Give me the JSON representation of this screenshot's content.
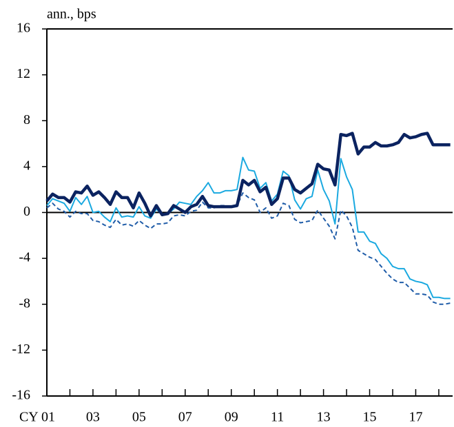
{
  "chart_data": {
    "type": "line",
    "y_axis_label": "ann., bps",
    "x": [
      2001,
      2001.25,
      2001.5,
      2001.75,
      2002,
      2002.25,
      2002.5,
      2002.75,
      2003,
      2003.25,
      2003.5,
      2003.75,
      2004,
      2004.25,
      2004.5,
      2004.75,
      2005,
      2005.25,
      2005.5,
      2005.75,
      2006,
      2006.25,
      2006.5,
      2006.75,
      2007,
      2007.25,
      2007.5,
      2007.75,
      2008,
      2008.25,
      2008.5,
      2008.75,
      2009,
      2009.25,
      2009.5,
      2009.75,
      2010,
      2010.25,
      2010.5,
      2010.75,
      2011,
      2011.25,
      2011.5,
      2011.75,
      2012,
      2012.25,
      2012.5,
      2012.75,
      2013,
      2013.25,
      2013.5,
      2013.75,
      2014,
      2014.25,
      2014.5,
      2014.75,
      2015,
      2015.25,
      2015.5,
      2015.75,
      2016,
      2016.25,
      2016.5,
      2016.75,
      2017,
      2017.25,
      2017.5,
      2017.75,
      2018,
      2018.25,
      2018.5
    ],
    "series": [
      {
        "color": "#1aa9e0",
        "width": 2,
        "dashed": false,
        "values": [
          0.6,
          1.2,
          1.0,
          0.8,
          0.1,
          1.3,
          0.7,
          1.4,
          0.0,
          0.1,
          -0.4,
          -0.8,
          0.4,
          -0.4,
          -0.3,
          -0.4,
          0.5,
          -0.3,
          -0.5,
          0.3,
          -0.2,
          -0.1,
          0.3,
          0.9,
          0.8,
          0.7,
          1.4,
          1.9,
          2.6,
          1.7,
          1.7,
          1.9,
          1.9,
          2.0,
          4.8,
          3.7,
          3.6,
          2.1,
          2.6,
          1.0,
          1.6,
          3.6,
          3.2,
          1.1,
          0.3,
          1.2,
          1.4,
          3.7,
          2.0,
          1.0,
          -1.0,
          4.7,
          3.1,
          2.0,
          -1.7,
          -1.7,
          -2.5,
          -2.7,
          -3.6,
          -4.0,
          -4.7,
          -4.9,
          -4.9,
          -5.8,
          -6.0,
          -6.1,
          -6.3,
          -7.4,
          -7.4,
          -7.5,
          -7.5
        ]
      },
      {
        "color": "#1f5ca8",
        "width": 2,
        "dashed": true,
        "values": [
          0.4,
          0.8,
          0.3,
          0.1,
          -0.4,
          0.1,
          -0.1,
          -0.1,
          -0.7,
          -0.8,
          -1.1,
          -1.3,
          -0.6,
          -1.1,
          -1.0,
          -1.2,
          -0.7,
          -1.1,
          -1.4,
          -1.0,
          -1.0,
          -0.9,
          -0.3,
          -0.2,
          -0.3,
          0.1,
          0.2,
          0.9,
          0.4,
          0.4,
          0.6,
          0.6,
          0.5,
          0.6,
          1.7,
          1.3,
          1.1,
          0.0,
          0.4,
          -0.5,
          -0.3,
          0.8,
          0.6,
          -0.6,
          -0.9,
          -0.8,
          -0.7,
          0.2,
          -0.5,
          -1.2,
          -2.3,
          0.2,
          -0.3,
          -1.3,
          -3.3,
          -3.6,
          -3.9,
          -4.1,
          -4.7,
          -5.3,
          -5.8,
          -6.1,
          -6.1,
          -6.6,
          -7.1,
          -7.1,
          -7.2,
          -7.8,
          -8.0,
          -8.0,
          -7.9
        ]
      },
      {
        "color": "#0b2360",
        "width": 4.5,
        "dashed": false,
        "values": [
          1.0,
          1.6,
          1.3,
          1.3,
          0.9,
          1.8,
          1.7,
          2.3,
          1.5,
          1.8,
          1.3,
          0.7,
          1.8,
          1.3,
          1.3,
          0.4,
          1.7,
          0.8,
          -0.3,
          0.6,
          -0.2,
          -0.1,
          0.6,
          0.3,
          0.0,
          0.5,
          0.7,
          1.4,
          0.6,
          0.5,
          0.5,
          0.5,
          0.5,
          0.6,
          2.8,
          2.4,
          2.8,
          1.8,
          2.2,
          0.7,
          1.2,
          3.0,
          3.0,
          2.0,
          1.7,
          2.1,
          2.5,
          4.2,
          3.8,
          3.7,
          2.4,
          6.8,
          6.7,
          6.9,
          5.1,
          5.7,
          5.7,
          6.1,
          5.8,
          5.8,
          5.9,
          6.1,
          6.8,
          6.5,
          6.6,
          6.8,
          6.9,
          5.9,
          5.9,
          5.9,
          5.9
        ]
      }
    ],
    "xlim": [
      2001,
      2018.6
    ],
    "xticks": [
      {
        "value": 2001,
        "label": "CY 01"
      },
      {
        "value": 2003,
        "label": "03"
      },
      {
        "value": 2005,
        "label": "05"
      },
      {
        "value": 2007,
        "label": "07"
      },
      {
        "value": 2009,
        "label": "09"
      },
      {
        "value": 2011,
        "label": "11"
      },
      {
        "value": 2013,
        "label": "13"
      },
      {
        "value": 2015,
        "label": "15"
      },
      {
        "value": 2017,
        "label": "17"
      }
    ],
    "xminor_ticks": [
      2002,
      2004,
      2006,
      2008,
      2010,
      2012,
      2014,
      2016,
      2018
    ],
    "ylim": [
      -16,
      16
    ],
    "yticks": [
      -16,
      -12,
      -8,
      -4,
      0,
      4,
      8,
      12,
      16
    ],
    "zero_line": true
  }
}
